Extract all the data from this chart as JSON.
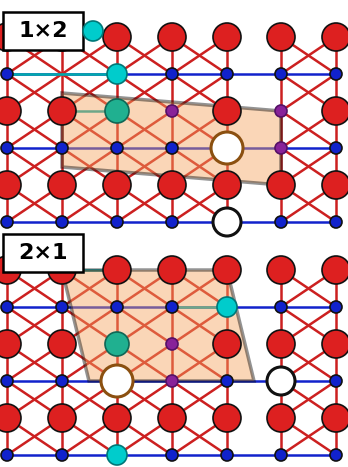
{
  "bg": "#ffffff",
  "label1": "1×2",
  "label2": "2×1",
  "lfs": 16,
  "c_Ga": "#dd2020",
  "c_N": "#1122cc",
  "c_teal": "#20b090",
  "c_cyan": "#00cccc",
  "c_purple": "#882299",
  "c_bond_rn": "#cc2020",
  "c_bond_tc": "#00aaaa",
  "c_cell": "#f4a460",
  "c_edge": "#111111",
  "c_vac_br": "#8b5010",
  "c_vac_bk": "#111111",
  "cell_alpha": 0.45,
  "R_Ga": 14,
  "R_N": 6,
  "R_teal": 12,
  "R_cyan": 10,
  "R_pur": 6,
  "R_vac": 16
}
